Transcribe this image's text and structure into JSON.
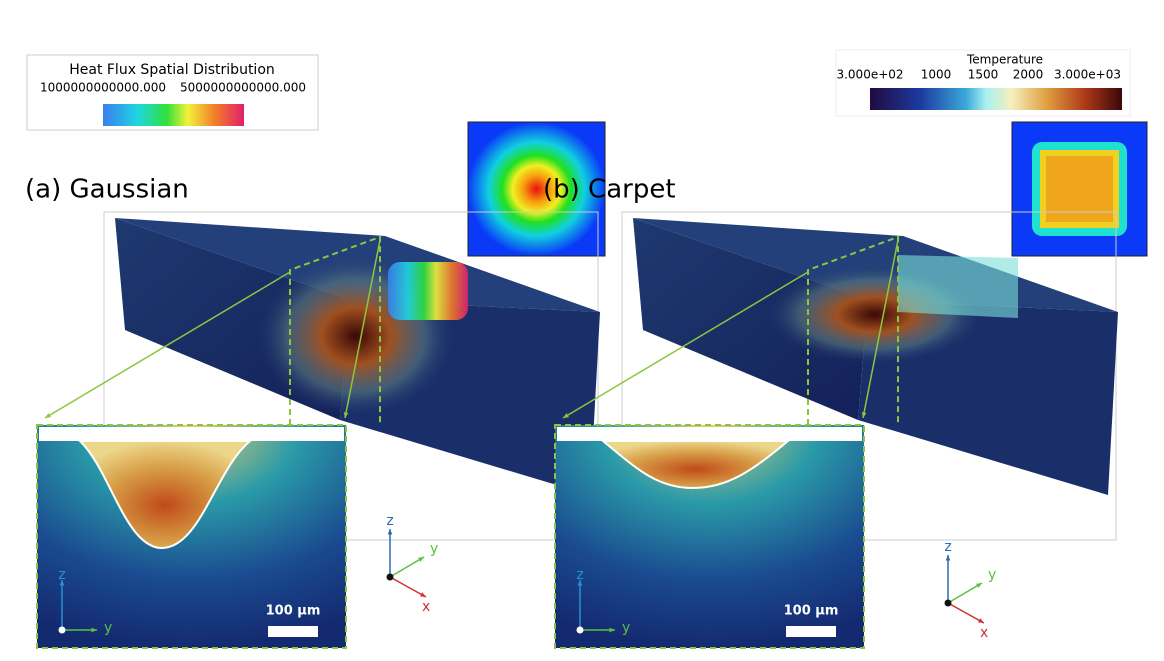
{
  "heat_flux_legend": {
    "title": "Heat Flux Spatial Distribution",
    "labels": [
      "1000000000000.000",
      "5000000000000.000"
    ]
  },
  "temperature_legend": {
    "title": "Temperature",
    "labels": [
      "3.000e+02",
      "1000",
      "1500",
      "2000",
      "3.000e+03"
    ]
  },
  "panels": [
    {
      "label": "(a) Gaussian",
      "scale_bar": "100 µm",
      "main_axes": [
        "z",
        "y",
        "x"
      ],
      "inset_axes": [
        "z",
        "y"
      ]
    },
    {
      "label": "(b) Carpet",
      "scale_bar": "100 µm",
      "main_axes": [
        "z",
        "y",
        "x"
      ],
      "inset_axes": [
        "z",
        "y"
      ]
    }
  ]
}
